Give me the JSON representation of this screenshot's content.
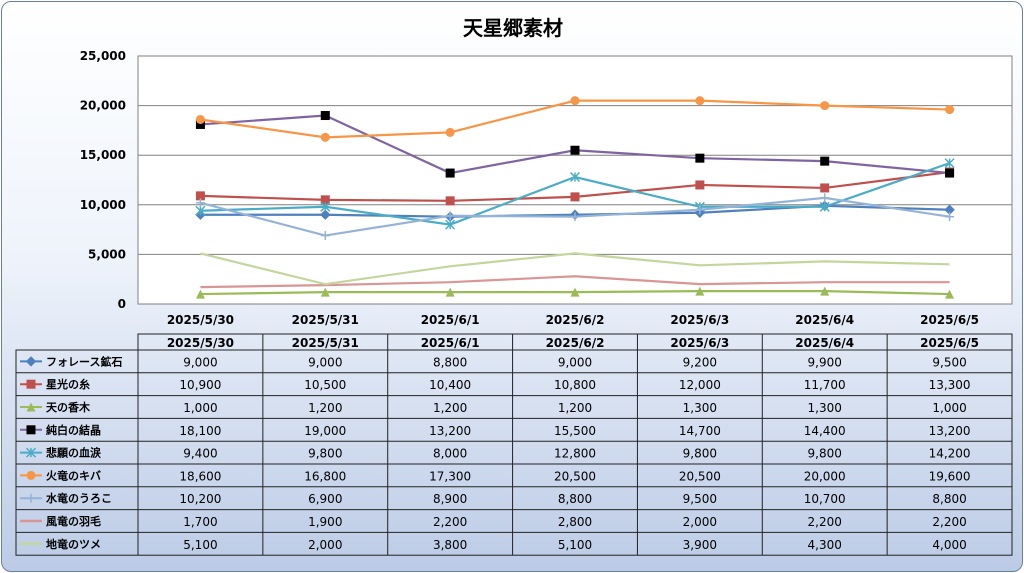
{
  "chart_data": {
    "type": "line",
    "title": "天星郷素材",
    "xlabel": "",
    "ylabel": "",
    "ylim": [
      0,
      25000
    ],
    "y_ticks": [
      "0",
      "5,000",
      "10,000",
      "15,000",
      "20,000",
      "25,000"
    ],
    "grid": true,
    "legend": "data table below chart",
    "categories": [
      "2025/5/30",
      "2025/5/31",
      "2025/6/1",
      "2025/6/2",
      "2025/6/3",
      "2025/6/4",
      "2025/6/5"
    ],
    "series": [
      {
        "name": "フォレース鉱石",
        "color": "#4f81bd",
        "marker": "diamond",
        "values": [
          9000,
          9000,
          8800,
          9000,
          9200,
          9900,
          9500
        ],
        "display": [
          "9,000",
          "9,000",
          "8,800",
          "9,000",
          "9,200",
          "9,900",
          "9,500"
        ]
      },
      {
        "name": "星光の糸",
        "color": "#c0504d",
        "marker": "square",
        "values": [
          10900,
          10500,
          10400,
          10800,
          12000,
          11700,
          13300
        ],
        "display": [
          "10,900",
          "10,500",
          "10,400",
          "10,800",
          "12,000",
          "11,700",
          "13,300"
        ]
      },
      {
        "name": "天の香木",
        "color": "#9bbb59",
        "marker": "triangle",
        "values": [
          1000,
          1200,
          1200,
          1200,
          1300,
          1300,
          1000
        ],
        "display": [
          "1,000",
          "1,200",
          "1,200",
          "1,200",
          "1,300",
          "1,300",
          "1,000"
        ]
      },
      {
        "name": "純白の結晶",
        "color": "#8064a2",
        "marker": "blacksquare",
        "values": [
          18100,
          19000,
          13200,
          15500,
          14700,
          14400,
          13200
        ],
        "display": [
          "18,100",
          "19,000",
          "13,200",
          "15,500",
          "14,700",
          "14,400",
          "13,200"
        ]
      },
      {
        "name": "悲願の血涙",
        "color": "#4bacc6",
        "marker": "asterisk",
        "values": [
          9400,
          9800,
          8000,
          12800,
          9800,
          9800,
          14200
        ],
        "display": [
          "9,400",
          "9,800",
          "8,000",
          "12,800",
          "9,800",
          "9,800",
          "14,200"
        ]
      },
      {
        "name": "火竜のキバ",
        "color": "#f79646",
        "marker": "circle",
        "values": [
          18600,
          16800,
          17300,
          20500,
          20500,
          20000,
          19600
        ],
        "display": [
          "18,600",
          "16,800",
          "17,300",
          "20,500",
          "20,500",
          "20,000",
          "19,600"
        ]
      },
      {
        "name": "水竜のうろこ",
        "color": "#95b3d7",
        "marker": "plus",
        "values": [
          10200,
          6900,
          8900,
          8800,
          9500,
          10700,
          8800
        ],
        "display": [
          "10,200",
          "6,900",
          "8,900",
          "8,800",
          "9,500",
          "10,700",
          "8,800"
        ]
      },
      {
        "name": "風竜の羽毛",
        "color": "#d99694",
        "marker": "none",
        "values": [
          1700,
          1900,
          2200,
          2800,
          2000,
          2200,
          2200
        ],
        "display": [
          "1,700",
          "1,900",
          "2,200",
          "2,800",
          "2,000",
          "2,200",
          "2,200"
        ]
      },
      {
        "name": "地竜のツメ",
        "color": "#c3d69b",
        "marker": "none",
        "values": [
          5100,
          2000,
          3800,
          5100,
          3900,
          4300,
          4000
        ],
        "display": [
          "5,100",
          "2,000",
          "3,800",
          "5,100",
          "3,900",
          "4,300",
          "4,000"
        ]
      }
    ]
  }
}
